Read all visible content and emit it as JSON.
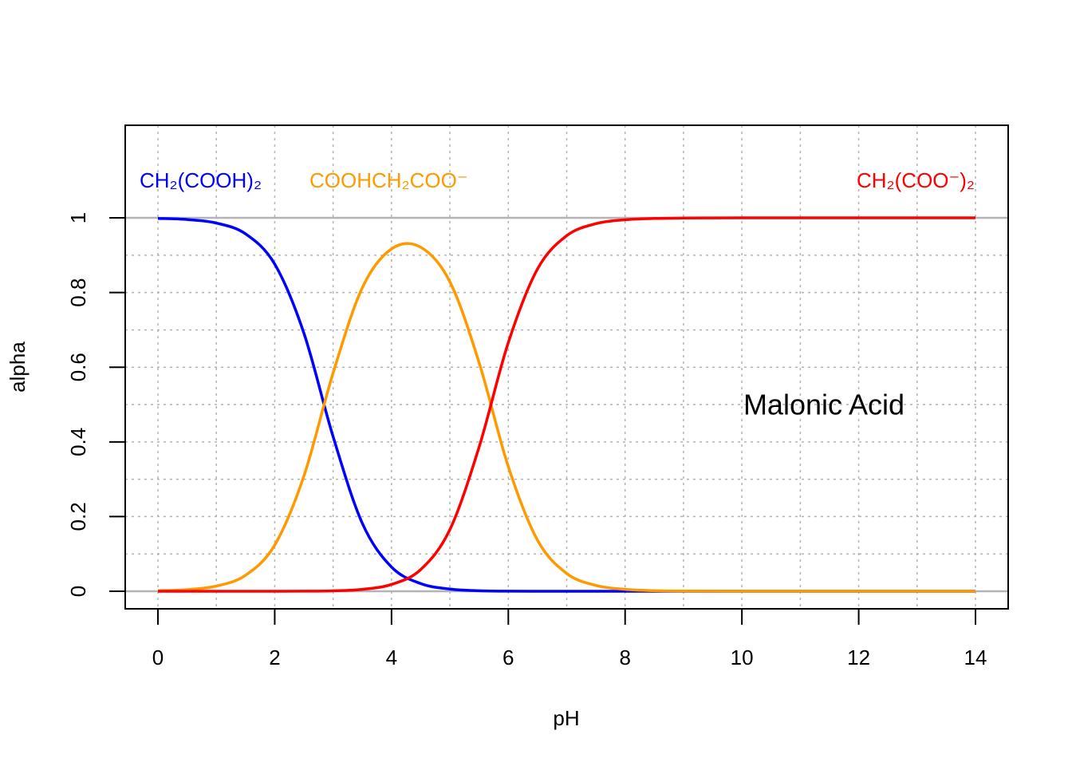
{
  "chart_data": {
    "type": "line",
    "title": "Malonic Acid",
    "x_label": "pH",
    "y_label": "alpha",
    "x": [
      0,
      0.5,
      1,
      1.5,
      2,
      2.5,
      3,
      3.5,
      4,
      4.5,
      5,
      5.5,
      6,
      6.5,
      7,
      7.5,
      8,
      8.5,
      9,
      9.5,
      10,
      10.5,
      11,
      11.5,
      12,
      12.5,
      13,
      13.5,
      14
    ],
    "series": [
      {
        "name": "CH₂(COOH)₂",
        "color": "#0000ff",
        "values": [
          0.9986,
          0.9956,
          0.9861,
          0.9572,
          0.8762,
          0.6911,
          0.414,
          0.182,
          0.0649,
          0.0206,
          0.0059,
          0.0014,
          0.0002,
          0,
          0,
          0,
          0,
          0,
          0,
          0,
          0,
          0,
          0,
          0,
          0,
          0,
          0,
          0,
          0
        ]
      },
      {
        "name": "COOHCH₂COO⁻",
        "color": "#ff9900",
        "values": [
          0.0014,
          0.0044,
          0.0139,
          0.0428,
          0.1238,
          0.3087,
          0.5848,
          0.8129,
          0.9168,
          0.9213,
          0.8288,
          0.6123,
          0.3338,
          0.1368,
          0.0477,
          0.0156,
          0.005,
          0.0016,
          0.0005,
          0.0002,
          0,
          0,
          0,
          0,
          0,
          0,
          0,
          0,
          0
        ]
      },
      {
        "name": "CH₂(COO⁻)₂",
        "color": "#ff0000",
        "values": [
          0,
          0,
          0,
          0,
          0,
          0.0002,
          0.0012,
          0.0051,
          0.0183,
          0.0581,
          0.1653,
          0.3863,
          0.666,
          0.8632,
          0.9523,
          0.9844,
          0.995,
          0.9984,
          0.9995,
          0.9998,
          1,
          1,
          1,
          1,
          1,
          1,
          1,
          1,
          1
        ]
      }
    ],
    "xlim": [
      -0.56,
      14.56
    ],
    "ylim": [
      -0.047,
      1.248
    ],
    "xticks": [
      0,
      2,
      4,
      6,
      8,
      10,
      12,
      14
    ],
    "yticks": [
      0,
      0.2,
      0.4,
      0.6,
      0.8,
      1
    ],
    "xgrid": [
      0,
      1,
      2,
      3,
      4,
      5,
      6,
      7,
      8,
      9,
      10,
      11,
      12,
      13,
      14
    ],
    "ygrid": [
      0.1,
      0.2,
      0.3,
      0.4,
      0.5,
      0.6,
      0.7,
      0.8,
      0.9
    ],
    "hlines": [
      0,
      1
    ],
    "grid": true
  }
}
